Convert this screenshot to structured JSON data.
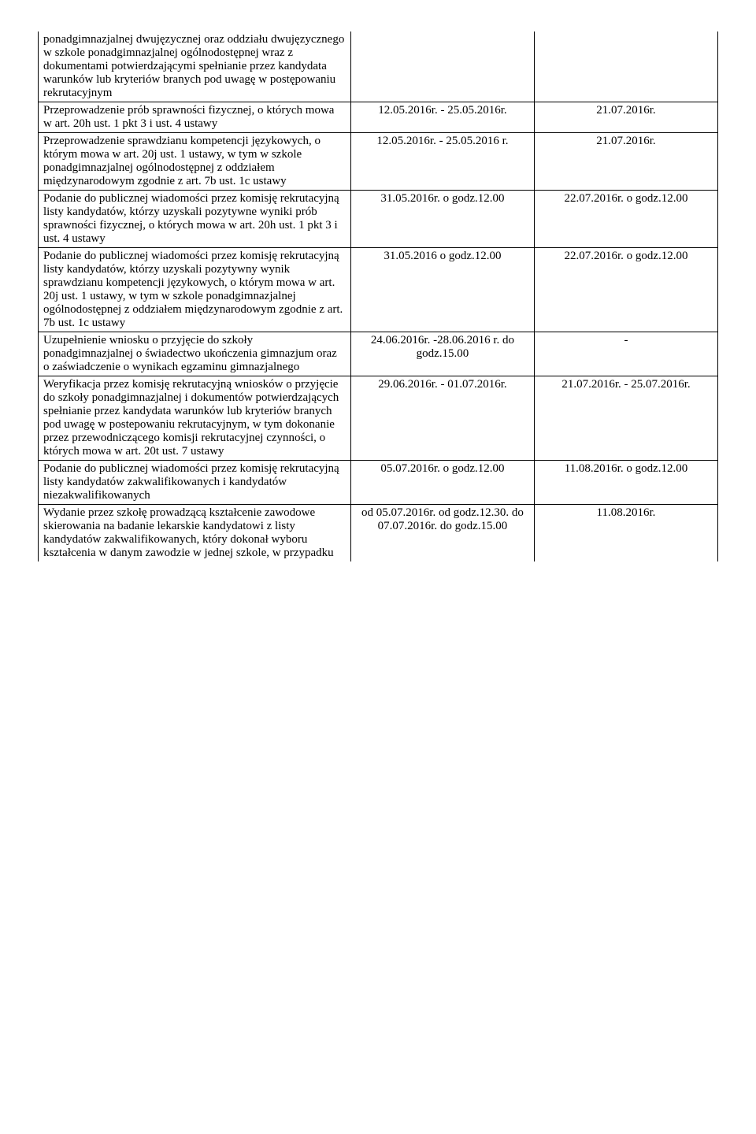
{
  "rows": [
    {
      "desc": "ponadgimnazjalnej dwujęzycznej oraz oddziału dwujęzycznego w szkole ponadgimnazjalnej ogólnodostępnej wraz z dokumentami potwierdzającymi spełnianie przez kandydata warunków lub kryteriów branych pod uwagę w postępowaniu rekrutacyjnym",
      "col2": "",
      "col3": "",
      "first": true
    },
    {
      "desc": "Przeprowadzenie prób sprawności fizycznej, o których mowa w art. 20h ust. 1 pkt 3 i ust. 4 ustawy",
      "col2": "12.05.2016r. - 25.05.2016r.",
      "col3": "21.07.2016r."
    },
    {
      "desc": "Przeprowadzenie sprawdzianu kompetencji językowych, o którym mowa w art. 20j ust. 1 ustawy, w tym w szkole ponadgimnazjalnej ogólnodostępnej z oddziałem międzynarodowym zgodnie z art. 7b ust. 1c ustawy",
      "col2": "12.05.2016r. - 25.05.2016 r.",
      "col3": "21.07.2016r."
    },
    {
      "desc": "Podanie do publicznej wiadomości przez komisję rekrutacyjną listy kandydatów, którzy uzyskali pozytywne wyniki prób sprawności fizycznej, o których mowa w art. 20h ust. 1 pkt 3 i ust. 4 ustawy",
      "col2": "31.05.2016r. o godz.12.00",
      "col3": "22.07.2016r. o godz.12.00"
    },
    {
      "desc": "Podanie do publicznej wiadomości przez komisję rekrutacyjną listy kandydatów, którzy uzyskali pozytywny wynik sprawdzianu kompetencji językowych, o którym mowa w art. 20j ust. 1 ustawy, w tym w szkole ponadgimnazjalnej ogólnodostępnej z oddziałem międzynarodowym zgodnie z art. 7b ust. 1c ustawy",
      "col2": "31.05.2016 o godz.12.00",
      "col3": "22.07.2016r. o godz.12.00"
    },
    {
      "desc": "Uzupełnienie wniosku o przyjęcie do szkoły ponadgimnazjalnej o świadectwo ukończenia gimnazjum oraz o zaświadczenie o wynikach egzaminu gimnazjalnego",
      "col2": "24.06.2016r. -28.06.2016 r. do godz.15.00",
      "col3": "-"
    },
    {
      "desc": "Weryfikacja przez komisję rekrutacyjną wniosków o przyjęcie do szkoły ponadgimnazjalnej i dokumentów potwierdzających spełnianie przez kandydata warunków lub kryteriów branych pod uwagę w postepowaniu rekrutacyjnym, w tym dokonanie przez przewodniczącego komisji rekrutacyjnej czynności, o których mowa w art. 20t ust. 7 ustawy",
      "col2": "29.06.2016r. - 01.07.2016r.",
      "col3": "21.07.2016r. - 25.07.2016r."
    },
    {
      "desc": "Podanie do publicznej wiadomości przez komisję rekrutacyjną listy kandydatów zakwalifikowanych i kandydatów niezakwalifikowanych",
      "col2": "05.07.2016r. o godz.12.00",
      "col3": "11.08.2016r. o godz.12.00"
    },
    {
      "desc": "Wydanie przez szkołę prowadzącą kształcenie zawodowe skierowania na badanie lekarskie kandydatowi z listy kandydatów zakwalifikowanych, który dokonał wyboru kształcenia w danym zawodzie w jednej szkole, w przypadku",
      "col2": "od 05.07.2016r. od godz.12.30. do 07.07.2016r. do godz.15.00",
      "col3": "11.08.2016r.",
      "last": true
    }
  ]
}
